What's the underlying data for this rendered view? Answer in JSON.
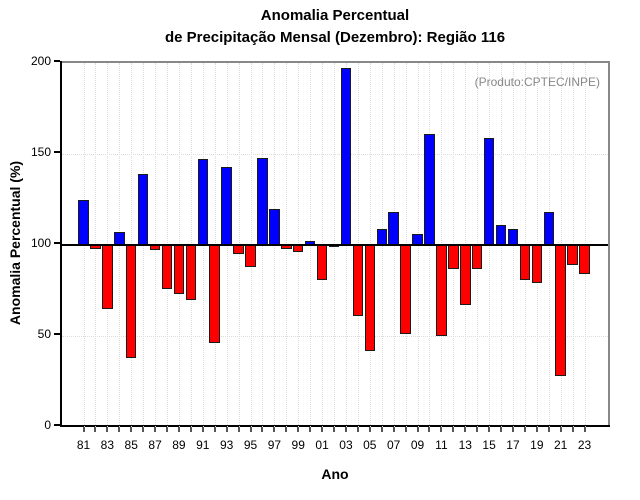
{
  "chart_data": {
    "type": "bar",
    "title_lines": [
      "Anomalia Percentual",
      "de Precipitação Mensal (Dezembro): Região 116"
    ],
    "annotation": "(Produto:CPTEC/INPE)",
    "xlabel": "Ano",
    "ylabel": "Anomalia Percentual (%)",
    "ylim": [
      0,
      200
    ],
    "yticks": [
      0,
      50,
      100,
      150,
      200
    ],
    "baseline": 100,
    "grid": "dotted light-gray: vertical line at every year, horizontal at 50 and 150",
    "legend": "none",
    "bar_color_above": "#0000ff",
    "bar_color_below": "#ff0000",
    "bar_outline": "#1a1a1a",
    "annotation_color": "#888888",
    "x": [
      1981,
      1982,
      1983,
      1984,
      1985,
      1986,
      1987,
      1988,
      1989,
      1990,
      1991,
      1992,
      1993,
      1994,
      1995,
      1996,
      1997,
      1998,
      1999,
      2000,
      2001,
      2002,
      2003,
      2004,
      2005,
      2006,
      2007,
      2008,
      2009,
      2010,
      2011,
      2012,
      2013,
      2014,
      2015,
      2016,
      2017,
      2018,
      2019,
      2020,
      2021,
      2022,
      2023
    ],
    "x_tick_labels": [
      "81",
      "83",
      "85",
      "87",
      "89",
      "91",
      "93",
      "95",
      "97",
      "99",
      "01",
      "03",
      "05",
      "07",
      "09",
      "11",
      "13",
      "15",
      "17",
      "19",
      "21",
      "23"
    ],
    "values": [
      125,
      98,
      65,
      107,
      38,
      139,
      97,
      76,
      73,
      70,
      147,
      46,
      143,
      95,
      88,
      148,
      120,
      98,
      96,
      102,
      81,
      100,
      197,
      61,
      42,
      109,
      118,
      51,
      106,
      161,
      50,
      87,
      67,
      87,
      159,
      111,
      109,
      81,
      79,
      118,
      28,
      89,
      84
    ]
  }
}
